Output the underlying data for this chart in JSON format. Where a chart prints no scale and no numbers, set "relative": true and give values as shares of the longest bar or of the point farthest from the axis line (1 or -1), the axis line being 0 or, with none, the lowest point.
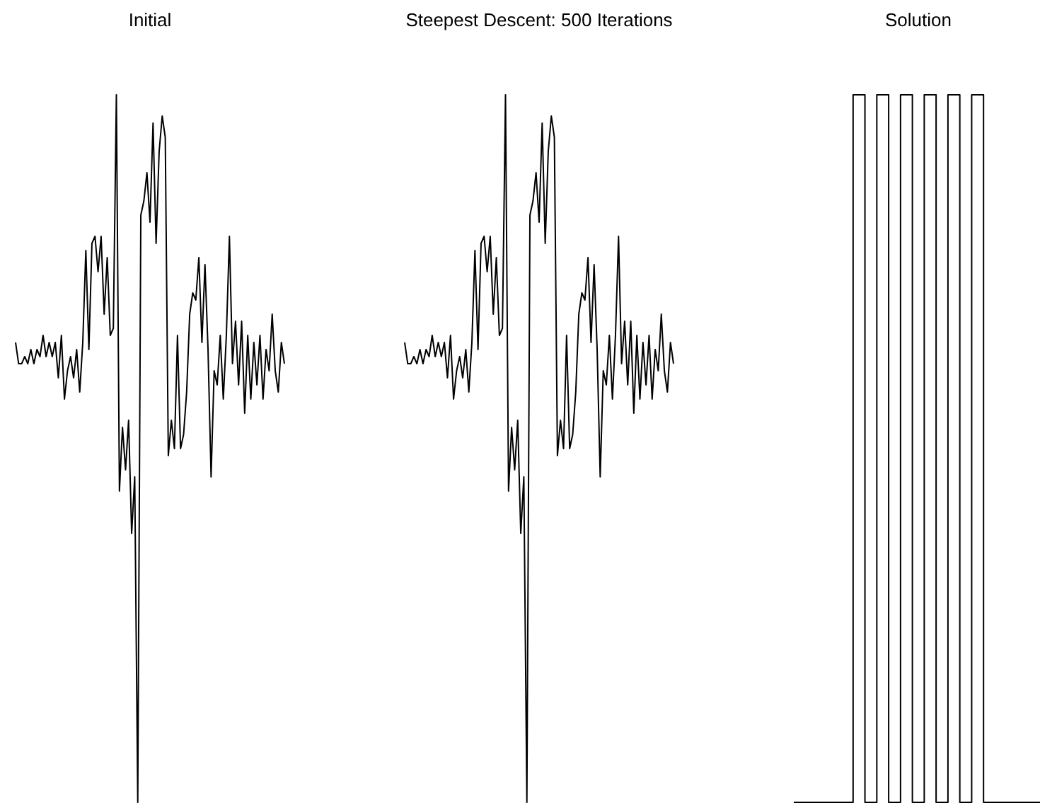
{
  "chart_data": [
    {
      "type": "line",
      "title": "Initial",
      "relative": true,
      "categories": [
        null,
        null,
        null,
        null,
        null,
        null,
        null,
        null,
        null,
        null,
        null,
        null,
        null,
        null,
        null,
        null,
        null,
        null,
        null,
        null,
        null,
        null,
        null,
        null,
        null,
        null,
        null,
        null,
        null,
        null,
        null,
        null,
        null,
        null,
        null,
        null,
        null,
        null,
        null,
        null,
        null,
        null,
        null,
        null,
        null,
        null,
        null,
        null,
        null,
        null,
        null,
        null,
        null,
        null,
        null,
        null,
        null,
        null,
        null,
        null,
        null,
        null,
        null,
        null,
        null,
        null,
        null,
        null,
        null,
        null,
        null,
        null,
        null,
        null,
        null,
        null,
        null,
        null,
        null,
        null,
        null,
        null,
        null,
        null,
        null,
        null,
        null,
        null,
        null
      ],
      "series": [
        {
          "color": "#000000",
          "values": [
            0.65,
            0.62,
            0.62,
            0.63,
            0.62,
            0.64,
            0.62,
            0.64,
            0.63,
            0.66,
            0.63,
            0.65,
            0.63,
            0.65,
            0.6,
            0.66,
            0.57,
            0.61,
            0.63,
            0.6,
            0.64,
            0.58,
            0.65,
            0.78,
            0.64,
            0.79,
            0.8,
            0.75,
            0.8,
            0.69,
            0.77,
            0.66,
            0.67,
            1.0,
            0.44,
            0.53,
            0.47,
            0.54,
            0.38,
            0.46,
            0.0,
            0.83,
            0.85,
            0.89,
            0.82,
            0.96,
            0.79,
            0.92,
            0.97,
            0.94,
            0.49,
            0.54,
            0.5,
            0.66,
            0.5,
            0.52,
            0.58,
            0.69,
            0.72,
            0.71,
            0.77,
            0.65,
            0.76,
            0.64,
            0.46,
            0.61,
            0.59,
            0.66,
            0.57,
            0.66,
            0.8,
            0.62,
            0.68,
            0.59,
            0.68,
            0.55,
            0.66,
            0.57,
            0.65,
            0.59,
            0.66,
            0.57,
            0.64,
            0.61,
            0.69,
            0.61,
            0.58,
            0.65,
            0.62
          ]
        }
      ]
    },
    {
      "type": "line",
      "title": "Steepest Descent: 500 Iterations",
      "relative": true,
      "categories": [
        null,
        null,
        null,
        null,
        null,
        null,
        null,
        null,
        null,
        null,
        null,
        null,
        null,
        null,
        null,
        null,
        null,
        null,
        null,
        null,
        null,
        null,
        null,
        null,
        null,
        null,
        null,
        null,
        null,
        null,
        null,
        null,
        null,
        null,
        null,
        null,
        null,
        null,
        null,
        null,
        null,
        null,
        null,
        null,
        null,
        null,
        null,
        null,
        null,
        null,
        null,
        null,
        null,
        null,
        null,
        null,
        null,
        null,
        null,
        null,
        null,
        null,
        null,
        null,
        null,
        null,
        null,
        null,
        null,
        null,
        null,
        null,
        null,
        null,
        null,
        null,
        null,
        null,
        null,
        null,
        null,
        null,
        null,
        null,
        null,
        null,
        null,
        null,
        null
      ],
      "series": [
        {
          "color": "#000000",
          "values": [
            0.65,
            0.62,
            0.62,
            0.63,
            0.62,
            0.64,
            0.62,
            0.64,
            0.63,
            0.66,
            0.63,
            0.65,
            0.63,
            0.65,
            0.6,
            0.66,
            0.57,
            0.61,
            0.63,
            0.6,
            0.64,
            0.58,
            0.65,
            0.78,
            0.64,
            0.79,
            0.8,
            0.75,
            0.8,
            0.69,
            0.77,
            0.66,
            0.67,
            1.0,
            0.44,
            0.53,
            0.47,
            0.54,
            0.38,
            0.46,
            0.0,
            0.83,
            0.85,
            0.89,
            0.82,
            0.96,
            0.79,
            0.92,
            0.97,
            0.94,
            0.49,
            0.54,
            0.5,
            0.66,
            0.5,
            0.52,
            0.58,
            0.69,
            0.72,
            0.71,
            0.77,
            0.65,
            0.76,
            0.64,
            0.46,
            0.61,
            0.59,
            0.66,
            0.57,
            0.66,
            0.8,
            0.62,
            0.68,
            0.59,
            0.68,
            0.55,
            0.66,
            0.57,
            0.65,
            0.59,
            0.66,
            0.57,
            0.64,
            0.61,
            0.69,
            0.61,
            0.58,
            0.65,
            0.62
          ]
        }
      ]
    },
    {
      "type": "step",
      "title": "Solution",
      "relative": true,
      "categories": [
        null,
        null,
        null,
        null,
        null,
        null,
        null,
        null,
        null,
        null,
        null,
        null,
        null,
        null,
        null,
        null,
        null,
        null,
        null,
        null,
        null,
        null
      ],
      "series": [
        {
          "color": "#000000",
          "values": [
            0,
            0,
            0,
            0,
            0,
            1,
            0,
            1,
            0,
            1,
            0,
            1,
            0,
            1,
            0,
            1,
            0,
            0,
            0,
            0,
            0,
            0
          ]
        }
      ]
    }
  ]
}
